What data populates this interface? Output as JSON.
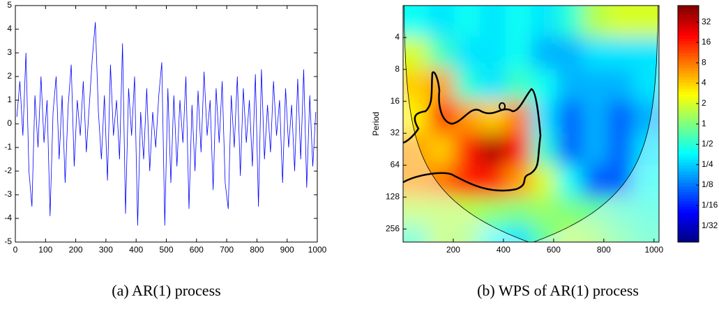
{
  "chart_data": [
    {
      "type": "line",
      "caption": "(a)  AR(1) process",
      "color": "#0000ff",
      "x": [
        5,
        15,
        25,
        35,
        45,
        55,
        65,
        75,
        85,
        95,
        105,
        115,
        125,
        135,
        145,
        155,
        165,
        175,
        185,
        195,
        205,
        215,
        225,
        235,
        245,
        255,
        265,
        275,
        285,
        295,
        305,
        315,
        325,
        335,
        345,
        355,
        365,
        375,
        385,
        395,
        405,
        415,
        425,
        435,
        445,
        455,
        465,
        475,
        485,
        495,
        505,
        515,
        525,
        535,
        545,
        555,
        565,
        575,
        585,
        595,
        605,
        615,
        625,
        635,
        645,
        655,
        665,
        675,
        685,
        695,
        705,
        715,
        725,
        735,
        745,
        755,
        765,
        775,
        785,
        795,
        805,
        815,
        825,
        835,
        845,
        855,
        865,
        875,
        885,
        895,
        905,
        915,
        925,
        935,
        945,
        955,
        965,
        975,
        985,
        995
      ],
      "values": [
        0.3,
        1.8,
        -0.5,
        3.0,
        -2.0,
        -3.5,
        1.2,
        -1.0,
        2.0,
        -0.8,
        1.0,
        -3.9,
        0.5,
        2.0,
        -1.5,
        1.2,
        -2.5,
        0.8,
        2.5,
        -1.8,
        1.0,
        -0.5,
        1.8,
        -1.2,
        0.8,
        2.8,
        4.3,
        0.5,
        -1.5,
        1.2,
        -2.4,
        2.5,
        -0.5,
        1.0,
        -1.5,
        3.4,
        -3.8,
        1.5,
        -0.5,
        2.0,
        -4.3,
        0.5,
        -1.5,
        1.5,
        -2.0,
        0.5,
        -1.0,
        1.2,
        2.6,
        -4.3,
        1.5,
        -2.5,
        1.2,
        -1.8,
        1.0,
        -0.8,
        2.0,
        -3.6,
        0.8,
        -2.0,
        1.4,
        -1.2,
        2.2,
        -0.5,
        1.0,
        -2.8,
        1.5,
        -0.8,
        1.8,
        -2.5,
        -3.6,
        1.2,
        -1.0,
        2.0,
        -2.2,
        1.5,
        -0.8,
        1.0,
        -1.8,
        2.1,
        -3.5,
        2.3,
        -1.5,
        0.8,
        -1.2,
        1.8,
        -0.5,
        1.0,
        -2.5,
        1.5,
        -1.0,
        0.8,
        -2.0,
        1.9,
        -1.5,
        2.3,
        -2.7,
        1.2,
        -1.8,
        0.5
      ],
      "xlim": [
        0,
        1000
      ],
      "ylim": [
        -5,
        5
      ],
      "xticks": [
        0,
        100,
        200,
        300,
        400,
        500,
        600,
        700,
        800,
        900,
        1000
      ],
      "yticks": [
        -5,
        -4,
        -3,
        -2,
        -1,
        0,
        1,
        2,
        3,
        4,
        5
      ]
    },
    {
      "type": "heatmap",
      "caption": "(b)  WPS of AR(1) process",
      "ylabel": "Period",
      "x": [
        51,
        153,
        255,
        357,
        459,
        561,
        663,
        765,
        867,
        969
      ],
      "y": [
        2.8,
        5.7,
        11,
        23,
        45,
        91,
        181,
        300
      ],
      "values": [
        [
          0.4,
          0.3,
          0.4,
          0.3,
          0.4,
          0.3,
          0.5,
          1.5,
          2,
          2
        ],
        [
          2,
          0.6,
          0.3,
          0.3,
          0.4,
          0.2,
          0.2,
          0.3,
          0.3,
          0.3
        ],
        [
          4,
          6,
          0.5,
          0.3,
          0.6,
          0.4,
          0.2,
          0.2,
          0.2,
          0.3
        ],
        [
          3,
          16,
          6,
          4,
          8,
          0.3,
          0.1,
          0.2,
          0.1,
          0.2
        ],
        [
          6,
          4,
          16,
          40,
          20,
          0.5,
          0.1,
          0.2,
          0.1,
          0.3
        ],
        [
          6,
          8,
          16,
          16,
          6,
          2,
          0.4,
          0.1,
          0.1,
          0.4
        ],
        [
          1.5,
          1.5,
          1.5,
          1.2,
          1,
          1.2,
          1,
          0.8,
          0.6,
          0.5
        ],
        [
          0.6,
          1.5,
          1.2,
          0.4,
          0.3,
          0.8,
          1.5,
          1.2,
          0.8,
          0.6
        ]
      ],
      "xlim": [
        0,
        1020
      ],
      "ylim": [
        2,
        340
      ],
      "ylog": true,
      "yreverse": true,
      "xticks": [
        200,
        400,
        600,
        800,
        1000
      ],
      "yticks": [
        4,
        8,
        16,
        32,
        64,
        128,
        256
      ],
      "colormap": "jet",
      "clog": true,
      "clim": [
        0.018,
        56
      ],
      "cticks": [
        32,
        16,
        8,
        4,
        2,
        1,
        {
          "value": 0.5,
          "label": "1/2"
        },
        {
          "value": 0.25,
          "label": "1/4"
        },
        {
          "value": 0.125,
          "label": "1/8"
        },
        {
          "value": 0.0625,
          "label": "1/16"
        },
        {
          "value": 0.03125,
          "label": "1/32"
        }
      ]
    }
  ]
}
